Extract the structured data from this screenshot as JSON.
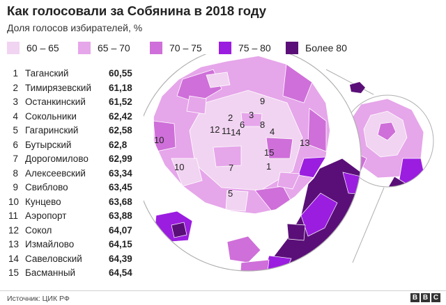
{
  "title": "Как голосовали за Собянина в 2018 году",
  "subtitle": "Доля голосов избирателей, %",
  "legend": [
    {
      "label": "60 – 65",
      "color": "#f1d4f1"
    },
    {
      "label": "65 – 70",
      "color": "#e6a6ea"
    },
    {
      "label": "70 – 75",
      "color": "#cf6fd9"
    },
    {
      "label": "75 – 80",
      "color": "#9b1de0"
    },
    {
      "label": "Более 80",
      "color": "#5a0f78"
    }
  ],
  "districts": [
    {
      "rank": "1",
      "name": "Таганский",
      "value": "60,55"
    },
    {
      "rank": "2",
      "name": "Тимирязевский",
      "value": "61,18"
    },
    {
      "rank": "3",
      "name": "Останкинский",
      "value": "61,52"
    },
    {
      "rank": "4",
      "name": "Сокольники",
      "value": "62,42"
    },
    {
      "rank": "5",
      "name": "Гагаринский",
      "value": "62,58"
    },
    {
      "rank": "6",
      "name": "Бутырский",
      "value": "62,8"
    },
    {
      "rank": "7",
      "name": "Дорогомилово",
      "value": "62,99"
    },
    {
      "rank": "8",
      "name": "Алексеевский",
      "value": "63,34"
    },
    {
      "rank": "9",
      "name": "Свиблово",
      "value": "63,45"
    },
    {
      "rank": "10",
      "name": "Кунцево",
      "value": "63,68"
    },
    {
      "rank": "11",
      "name": "Аэропорт",
      "value": "63,88"
    },
    {
      "rank": "12",
      "name": "Сокол",
      "value": "64,07"
    },
    {
      "rank": "13",
      "name": "Измайлово",
      "value": "64,15"
    },
    {
      "rank": "14",
      "name": "Савеловский",
      "value": "64,39"
    },
    {
      "rank": "15",
      "name": "Басманный",
      "value": "64,54"
    }
  ],
  "map_labels": [
    "9",
    "2",
    "3",
    "6",
    "8",
    "12",
    "11",
    "14",
    "4",
    "10",
    "13",
    "15",
    "10",
    "7",
    "1",
    "5"
  ],
  "colors": {
    "outline": "#ffffff",
    "lightest": "#f1d4f1",
    "light": "#e6a6ea",
    "mid": "#cf6fd9",
    "strong": "#9b1de0",
    "darkest": "#5a0f78",
    "zoom_ring": "#b0b0b0"
  },
  "source": "Источник: ЦИК РФ",
  "logo": [
    "B",
    "B",
    "C"
  ]
}
